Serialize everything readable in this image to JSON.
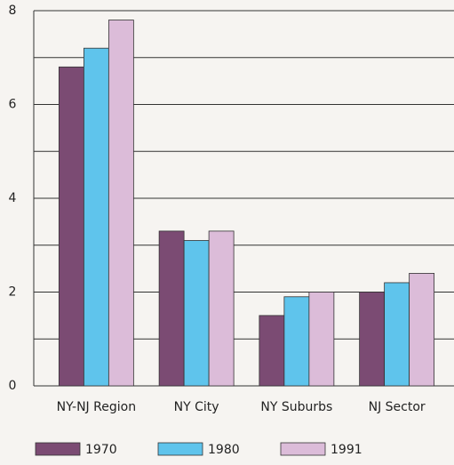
{
  "chart_data": {
    "type": "bar",
    "categories": [
      "NY-NJ Region",
      "NY City",
      "NY Suburbs",
      "NJ Sector"
    ],
    "series": [
      {
        "name": "1970",
        "color": "#7b4b73",
        "values": [
          6.8,
          3.3,
          1.5,
          2.0
        ]
      },
      {
        "name": "1980",
        "color": "#5fc4ec",
        "values": [
          7.2,
          3.1,
          1.9,
          2.2
        ]
      },
      {
        "name": "1991",
        "color": "#dcbcd9",
        "values": [
          7.8,
          3.3,
          2.0,
          2.4
        ]
      }
    ],
    "ylim": [
      0,
      8
    ],
    "yticks": [
      0,
      2,
      4,
      6,
      8
    ],
    "y_minor_ticks": [
      1,
      3,
      5,
      7
    ],
    "grid": true
  }
}
